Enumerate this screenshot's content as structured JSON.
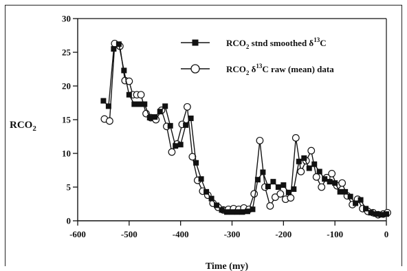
{
  "chart_data": {
    "type": "line",
    "ylabel": "RCO2",
    "xlabel": "Time (my)",
    "xlim": [
      -600,
      0
    ],
    "ylim": [
      0,
      30
    ],
    "xticks": [
      "-600",
      "-500",
      "-400",
      "-300",
      "-200",
      "-100",
      "0"
    ],
    "yticks": [
      "0",
      "5",
      "10",
      "15",
      "20",
      "25",
      "30"
    ],
    "grid": false,
    "legend_position": "top-right",
    "series": [
      {
        "name": "RCO2 stnd smoothed δ13C",
        "marker": "filled-square",
        "color": "#111111",
        "x": [
          -550,
          -540,
          -530,
          -520,
          -510,
          -500,
          -490,
          -480,
          -470,
          -460,
          -450,
          -440,
          -430,
          -420,
          -410,
          -400,
          -390,
          -380,
          -370,
          -360,
          -350,
          -340,
          -330,
          -320,
          -310,
          -300,
          -290,
          -280,
          -270,
          -260,
          -250,
          -240,
          -230,
          -220,
          -210,
          -200,
          -190,
          -180,
          -170,
          -160,
          -150,
          -140,
          -130,
          -120,
          -110,
          -100,
          -90,
          -80,
          -70,
          -60,
          -50,
          -40,
          -30,
          -20,
          -10,
          0
        ],
        "y": [
          17.8,
          17.0,
          25.5,
          26.2,
          22.3,
          18.7,
          17.3,
          17.3,
          17.3,
          15.3,
          15.4,
          16.2,
          17.0,
          14.1,
          11.1,
          11.3,
          14.2,
          15.2,
          8.6,
          6.2,
          4.3,
          3.3,
          2.3,
          1.6,
          1.3,
          1.3,
          1.3,
          1.3,
          1.4,
          1.7,
          6.1,
          7.2,
          5.1,
          5.8,
          5.0,
          5.3,
          4.2,
          4.7,
          8.8,
          9.3,
          7.8,
          8.4,
          7.3,
          6.2,
          5.8,
          5.6,
          4.3,
          4.3,
          3.6,
          2.6,
          3.1,
          1.8,
          1.2,
          1.0,
          0.9,
          1.0
        ]
      },
      {
        "name": "RCO2 δ13C raw (mean) data",
        "marker": "open-circle",
        "color": "#111111",
        "x": [
          -548,
          -538,
          -528,
          -518,
          -508,
          -500,
          -493,
          -485,
          -477,
          -467,
          -458,
          -448,
          -437,
          -427,
          -417,
          -407,
          -397,
          -387,
          -377,
          -367,
          -357,
          -347,
          -337,
          -327,
          -317,
          -307,
          -297,
          -287,
          -277,
          -267,
          -257,
          -246,
          -236,
          -226,
          -216,
          -206,
          -196,
          -186,
          -176,
          -166,
          -156,
          -146,
          -136,
          -126,
          -116,
          -106,
          -96,
          -86,
          -76,
          -66,
          -56,
          -46,
          -36,
          -26,
          -16,
          -6,
          2
        ],
        "y": [
          15.1,
          14.8,
          26.3,
          25.9,
          20.8,
          20.7,
          18.7,
          18.7,
          18.7,
          15.9,
          15.3,
          15.0,
          16.4,
          14.0,
          10.2,
          11.4,
          14.3,
          16.9,
          9.5,
          6.0,
          4.4,
          3.8,
          2.6,
          2.0,
          1.6,
          1.7,
          1.8,
          1.7,
          1.9,
          1.7,
          4.0,
          11.9,
          5.0,
          2.2,
          3.5,
          4.0,
          3.2,
          3.4,
          12.3,
          7.3,
          8.9,
          10.4,
          6.5,
          5.0,
          6.4,
          7.0,
          5.2,
          5.6,
          3.7,
          2.4,
          3.2,
          1.8,
          1.4,
          1.2,
          0.9,
          1.0,
          1.2
        ]
      }
    ]
  }
}
